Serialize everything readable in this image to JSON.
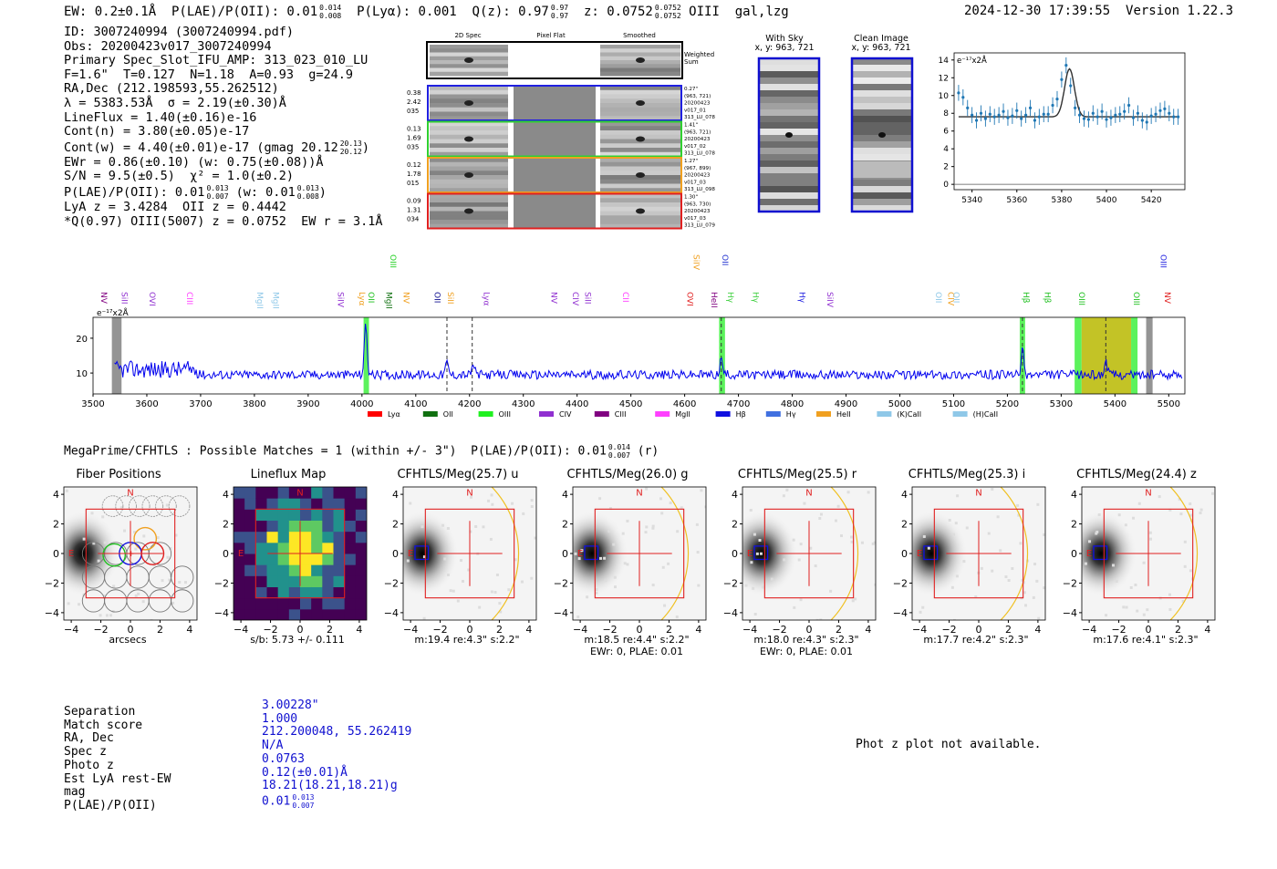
{
  "header": {
    "ew_prefix": "EW: 0.2±0.1Å  P(LAE)/P(OII): 0.01",
    "plae_hi": "0.014",
    "plae_lo": "0.008",
    "plya": "P(Lyα): 0.001  Q(z): 0.97",
    "q_hi": "0.97",
    "q_lo": "0.97",
    "z_label": "z: 0.0752",
    "z_hi": "0.0752",
    "z_lo": "0.0752",
    "class": "OIII  gal,lzg",
    "timestamp": "2024-12-30 17:39:55",
    "version": "Version 1.22.3"
  },
  "info": {
    "lines": [
      "ID: 3007240994 (3007240994.pdf)",
      "Obs: 20200423v017_3007240994",
      "Primary Spec_Slot_IFU_AMP: 313_023_010_LU",
      "F=1.6\"  T=0.127  N=1.18  A=0.93  g=24.9",
      "RA,Dec (212.198593,55.262512)",
      "λ = 5383.53Å  σ = 2.19(±0.30)Å",
      "LineFlux = 1.40(±0.16)e-16",
      "Cont(n) = 3.80(±0.05)e-17"
    ],
    "contw": "Cont(w) = 4.40(±0.01)e-17 (gmag 20.12",
    "contw_hi": "20.13",
    "contw_lo": "20.12",
    "contw_end": ")",
    "ewr": "EWr = 0.86(±0.10) (w: 0.75(±0.08))Å",
    "sn": "S/N = 9.5(±0.5)  χ² = 1.0(±0.2)",
    "plae2": "P(LAE)/P(OII): 0.01",
    "plae2_hi": "0.013",
    "plae2_lo": "0.007",
    "plae2_w": "(w: 0.01",
    "plae2_w_hi": "0.013",
    "plae2_w_lo": "0.008",
    "plae2_end": ")",
    "lyaz": "LyA z = 3.4284  OII z = 0.4442",
    "qline": "*Q(0.97) OIII(5007) z = 0.0752  EW r = 3.1Å"
  },
  "cutouts": {
    "col_titles": [
      "2D Spec",
      "Pixel Flat",
      "Smoothed"
    ],
    "weighted_sum": [
      "Weighted",
      "Sum"
    ],
    "rows": [
      {
        "left": [
          "0.38",
          "2.42",
          "035"
        ],
        "right": [
          "0.27\"",
          "(963, 721)",
          "20200423",
          "v017_01",
          "313_LU_078"
        ],
        "color": "#2020e0"
      },
      {
        "left": [
          "0.13",
          "1.69",
          "035"
        ],
        "right": [
          "1.41\"",
          "(963, 721)",
          "20200423",
          "v017_02",
          "313_LU_078"
        ],
        "color": "#30d030"
      },
      {
        "left": [
          "0.12",
          "1.78",
          "015"
        ],
        "right": [
          "1.27\"",
          "(967, 899)",
          "20200423",
          "v017_03",
          "313_LU_098"
        ],
        "color": "#f0a020"
      },
      {
        "left": [
          "0.09",
          "1.31",
          "034"
        ],
        "right": [
          "1.30\"",
          "(963, 730)",
          "20200423",
          "v017_03",
          "313_LU_079"
        ],
        "color": "#e02020"
      }
    ]
  },
  "sky": {
    "with_sky": [
      "With Sky",
      "x, y: 963, 721"
    ],
    "clean": [
      "Clean Image",
      "x, y: 963, 721"
    ]
  },
  "zoom": {
    "ylabel": "e⁻¹⁷x2Å",
    "xticks": [
      "5340",
      "5360",
      "5380",
      "5400",
      "5420"
    ],
    "yticks": [
      "0",
      "2",
      "4",
      "6",
      "8",
      "10",
      "12",
      "14"
    ],
    "chart_data": {
      "type": "scatter",
      "title": "",
      "xlim": [
        5332,
        5435
      ],
      "ylim": [
        -0.6,
        14.8
      ],
      "x": [
        5334,
        5336,
        5338,
        5340,
        5342,
        5344,
        5346,
        5348,
        5350,
        5352,
        5354,
        5356,
        5358,
        5360,
        5362,
        5364,
        5366,
        5368,
        5370,
        5372,
        5374,
        5376,
        5378,
        5380,
        5382,
        5384,
        5386,
        5388,
        5390,
        5392,
        5394,
        5396,
        5398,
        5400,
        5402,
        5404,
        5406,
        5408,
        5410,
        5412,
        5414,
        5416,
        5418,
        5420,
        5422,
        5424,
        5426,
        5428,
        5430,
        5432
      ],
      "y": [
        10.3,
        9.8,
        8.6,
        7.8,
        7.2,
        8.0,
        7.4,
        7.9,
        7.6,
        7.8,
        8.2,
        7.5,
        7.7,
        8.3,
        7.4,
        7.8,
        8.6,
        7.2,
        7.6,
        7.9,
        7.9,
        8.9,
        9.6,
        11.8,
        13.4,
        11.1,
        8.6,
        7.8,
        7.4,
        7.3,
        8.0,
        7.6,
        8.2,
        7.3,
        7.5,
        7.8,
        7.9,
        8.2,
        8.9,
        7.5,
        8.0,
        7.2,
        7.0,
        7.7,
        7.9,
        8.3,
        8.5,
        8.0,
        7.6,
        7.6
      ],
      "fit_continuum": 7.6,
      "fit_center": 5383.5,
      "fit_sigma": 2.19,
      "fit_amp": 5.4
    }
  },
  "spectrum": {
    "ylabel": "e⁻¹⁷x2Å",
    "xticks": [
      "3500",
      "3600",
      "3700",
      "3800",
      "3900",
      "4000",
      "4100",
      "4200",
      "4300",
      "4400",
      "4500",
      "4600",
      "4700",
      "4800",
      "4900",
      "5000",
      "5100",
      "5200",
      "5300",
      "5400",
      "5500"
    ],
    "yticks": [
      "10",
      "20"
    ],
    "line_labels": [
      {
        "t": "NV",
        "w": 3510,
        "c": "#800080",
        "row": 2
      },
      {
        "t": "SiII",
        "w": 3548,
        "c": "#9030d0",
        "row": 2
      },
      {
        "t": "OVI",
        "w": 3600,
        "c": "#9030d0",
        "row": 2
      },
      {
        "t": "CIII",
        "w": 3670,
        "c": "#ff40ff",
        "row": 2
      },
      {
        "t": "MgII",
        "w": 3800,
        "c": "#8fc8e8",
        "row": 2
      },
      {
        "t": "MgII",
        "w": 3830,
        "c": "#8fc8e8",
        "row": 2
      },
      {
        "t": "SiIV",
        "w": 3950,
        "c": "#9030d0",
        "row": 2
      },
      {
        "t": "Lyα",
        "w": 3990,
        "c": "#f0a020",
        "row": 2
      },
      {
        "t": "OII",
        "w": 4007,
        "c": "#20c020",
        "row": 2
      },
      {
        "t": "OIII",
        "w": 4048,
        "c": "#20d020",
        "row": 1
      },
      {
        "t": "MgII",
        "w": 4040,
        "c": "#107010",
        "row": 2
      },
      {
        "t": "NV",
        "w": 4072,
        "c": "#f0a020",
        "row": 2
      },
      {
        "t": "OII",
        "w": 4130,
        "c": "#101090",
        "row": 2
      },
      {
        "t": "SiII",
        "w": 4155,
        "c": "#f0a020",
        "row": 2
      },
      {
        "t": "Lyα",
        "w": 4222,
        "c": "#9030d0",
        "row": 2
      },
      {
        "t": "NV",
        "w": 4347,
        "c": "#9030d0",
        "row": 2
      },
      {
        "t": "CIV",
        "w": 4387,
        "c": "#9030d0",
        "row": 2
      },
      {
        "t": "SiII",
        "w": 4410,
        "c": "#9030d0",
        "row": 2
      },
      {
        "t": "CII",
        "w": 4480,
        "c": "#ff40ff",
        "row": 2
      },
      {
        "t": "OVI",
        "w": 4600,
        "c": "#e02020",
        "row": 2
      },
      {
        "t": "SiIV",
        "w": 4612,
        "c": "#f0a020",
        "row": 1
      },
      {
        "t": "HeII",
        "w": 4645,
        "c": "#800080",
        "row": 2
      },
      {
        "t": "OII",
        "w": 4665,
        "c": "#2030d0",
        "row": 1
      },
      {
        "t": "Hγ",
        "w": 4675,
        "c": "#40d040",
        "row": 2
      },
      {
        "t": "Hγ",
        "w": 4722,
        "c": "#40d040",
        "row": 2
      },
      {
        "t": "Hγ",
        "w": 4808,
        "c": "#2020e0",
        "row": 2
      },
      {
        "t": "SiIV",
        "w": 4860,
        "c": "#9030d0",
        "row": 2
      },
      {
        "t": "OII",
        "w": 5062,
        "c": "#8fc8e8",
        "row": 2
      },
      {
        "t": "CIV",
        "w": 5085,
        "c": "#f0a020",
        "row": 2
      },
      {
        "t": "OII",
        "w": 5095,
        "c": "#8fc8e8",
        "row": 2
      },
      {
        "t": "Hβ",
        "w": 5225,
        "c": "#20c020",
        "row": 2
      },
      {
        "t": "Hβ",
        "w": 5265,
        "c": "#20c020",
        "row": 2
      },
      {
        "t": "OIII",
        "w": 5328,
        "c": "#20c020",
        "row": 2
      },
      {
        "t": "OIII",
        "w": 5430,
        "c": "#20c020",
        "row": 2
      },
      {
        "t": "OIII",
        "w": 5480,
        "c": "#2020e0",
        "row": 1
      },
      {
        "t": "NV",
        "w": 5488,
        "c": "#e02020",
        "row": 2
      }
    ],
    "legend": [
      {
        "t": "Lyα",
        "c": "#ff0000"
      },
      {
        "t": "OII",
        "c": "#107010"
      },
      {
        "t": "OIII",
        "c": "#20f020"
      },
      {
        "t": "CIV",
        "c": "#9030d0"
      },
      {
        "t": "CIII",
        "c": "#800080"
      },
      {
        "t": "MgII",
        "c": "#ff40ff"
      },
      {
        "t": "Hβ",
        "c": "#1010e0"
      },
      {
        "t": "Hγ",
        "c": "#4070e0"
      },
      {
        "t": "HeII",
        "c": "#f0a020"
      },
      {
        "t": "(K)CaII",
        "c": "#8fc8e8"
      },
      {
        "t": "(H)CaII",
        "c": "#8fc8e8"
      }
    ],
    "chart_data": {
      "type": "line",
      "xlim": [
        3500,
        5530
      ],
      "ylim": [
        4,
        26
      ],
      "continuum": 9.5,
      "emission_lines": [
        {
          "w": 4007,
          "peak": 24
        },
        {
          "w": 4158,
          "peak": 13
        },
        {
          "w": 4207,
          "peak": 12.5
        },
        {
          "w": 4668,
          "peak": 14
        },
        {
          "w": 5228,
          "peak": 16.5
        },
        {
          "w": 5383,
          "peak": 13.5
        }
      ],
      "shaded_regions": [
        {
          "x0": 4003,
          "x1": 4013,
          "c": "#40f040"
        },
        {
          "x0": 4664,
          "x1": 4675,
          "c": "#40f040"
        },
        {
          "x0": 5223,
          "x1": 5233,
          "c": "#40f040"
        },
        {
          "x0": 5325,
          "x1": 5338,
          "c": "#40f040"
        },
        {
          "x0": 5338,
          "x1": 5430,
          "c": "#b8b800"
        },
        {
          "x0": 5430,
          "x1": 5442,
          "c": "#40f040"
        },
        {
          "x0": 3535,
          "x1": 3553,
          "c": "#888888"
        },
        {
          "x0": 5458,
          "x1": 5470,
          "c": "#888888"
        }
      ],
      "dashed_lines": [
        4158,
        4205,
        4668,
        5228,
        5383
      ]
    }
  },
  "megaprime": {
    "prefix": "MegaPrime/CFHTLS : Possible Matches = 1 (within +/- 3\")  P(LAE)/P(OII): 0.01",
    "hi": "0.014",
    "lo": "0.007",
    "suffix": "(r)"
  },
  "imaging": {
    "panels": [
      {
        "title": "Fiber Positions",
        "cap1": "arcsecs",
        "cap2": "",
        "kind": "fiber"
      },
      {
        "title": "Lineflux Map",
        "cap1": "s/b: 5.73 +/- 0.111",
        "cap2": "",
        "kind": "flux"
      },
      {
        "title": "CFHTLS/Meg(25.7) u",
        "cap1": "m:19.4  re:4.3\"  s:2.2\"",
        "cap2": "",
        "kind": "img"
      },
      {
        "title": "CFHTLS/Meg(26.0) g",
        "cap1": "m:18.5  re:4.4\"  s:2.2\"",
        "cap2": "EWr: 0, PLAE: 0.01",
        "kind": "img"
      },
      {
        "title": "CFHTLS/Meg(25.5) r",
        "cap1": "m:18.0  re:4.3\"  s:2.3\"",
        "cap2": "EWr: 0, PLAE: 0.01",
        "kind": "img"
      },
      {
        "title": "CFHTLS/Meg(25.3) i",
        "cap1": "m:17.7  re:4.2\"  s:2.3\"",
        "cap2": "",
        "kind": "img"
      },
      {
        "title": "CFHTLS/Meg(24.4) z",
        "cap1": "m:17.6  re:4.1\"  s:2.3\"",
        "cap2": "",
        "kind": "img"
      }
    ],
    "axis_ticks": [
      "4",
      "2",
      "0",
      "−2",
      "−4"
    ],
    "xaxis_ticks": [
      "−4",
      "−2",
      "0",
      "2",
      "4"
    ],
    "north": "N",
    "east": "E"
  },
  "match": {
    "labels": [
      "Separation",
      "Match score",
      "RA, Dec",
      "Spec z",
      "Photo z",
      "Est LyA rest-EW",
      "mag",
      "P(LAE)/P(OII)"
    ],
    "values": [
      "3.00228\"",
      "1.000",
      "212.200048, 55.262419",
      "N/A",
      "0.0763",
      "0.12(±0.01)Å",
      "18.21(18.21,18.21)g",
      "0.01"
    ],
    "plae_hi": "0.013",
    "plae_lo": "0.007",
    "photz_msg": "Phot z plot not available."
  }
}
